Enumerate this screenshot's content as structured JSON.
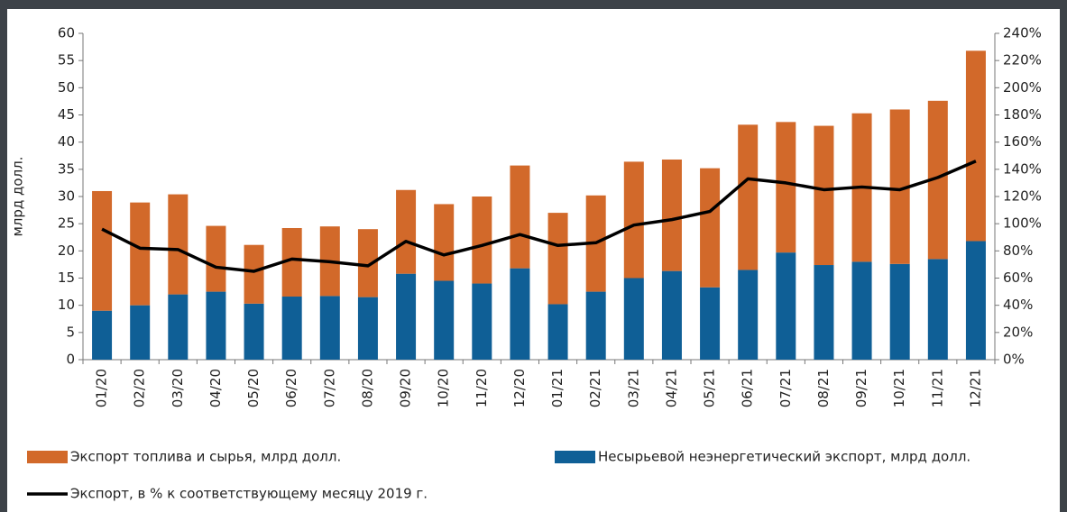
{
  "chart_data": {
    "type": "bar",
    "y_label": "млрд долл.",
    "categories": [
      "01/20",
      "02/20",
      "03/20",
      "04/20",
      "05/20",
      "06/20",
      "07/20",
      "08/20",
      "09/20",
      "10/20",
      "11/20",
      "12/20",
      "01/21",
      "02/21",
      "03/21",
      "04/21",
      "05/21",
      "06/21",
      "07/21",
      "08/21",
      "09/21",
      "10/21",
      "11/21",
      "12/21"
    ],
    "series": [
      {
        "name": "Экспорт топлива и сырья, млрд долл.",
        "color": "#d2692a",
        "values": [
          22,
          18.9,
          18.4,
          12.1,
          10.8,
          12.6,
          12.8,
          12.5,
          15.4,
          14.1,
          16,
          18.9,
          16.8,
          17.7,
          21.4,
          20.5,
          21.9,
          26.7,
          24,
          25.6,
          27.3,
          28.4,
          29.1,
          35
        ]
      },
      {
        "name": "Несырьевой неэнергетический экспорт, млрд долл.",
        "color": "#0f5f96",
        "values": [
          9,
          10,
          12,
          12.5,
          10.3,
          11.6,
          11.7,
          11.5,
          15.8,
          14.5,
          14,
          16.8,
          10.2,
          12.5,
          15,
          16.3,
          13.3,
          16.5,
          19.7,
          17.4,
          18,
          17.6,
          18.5,
          21.8
        ]
      },
      {
        "name": "Экспорт, в % к соответствующему месяцу 2019 г.",
        "color": "#000000",
        "axis": "y2",
        "values": [
          96,
          82,
          81,
          68,
          65,
          74,
          72,
          69,
          87,
          77,
          84,
          92,
          84,
          86,
          99,
          103,
          109,
          133,
          130,
          125,
          127,
          125,
          134,
          146
        ]
      }
    ],
    "ylim": [
      0,
      60
    ],
    "yticks": [
      0,
      5,
      10,
      15,
      20,
      25,
      30,
      35,
      40,
      45,
      50,
      55,
      60
    ],
    "y2lim": [
      0,
      240
    ],
    "y2ticks": [
      {
        "value": 0,
        "label": "0%"
      },
      {
        "value": 20,
        "label": "20%"
      },
      {
        "value": 40,
        "label": "40%"
      },
      {
        "value": 60,
        "label": "60%"
      },
      {
        "value": 80,
        "label": "80%"
      },
      {
        "value": 100,
        "label": "100%"
      },
      {
        "value": 120,
        "label": "120%"
      },
      {
        "value": 140,
        "label": "140%"
      },
      {
        "value": 160,
        "label": "160%"
      },
      {
        "value": 180,
        "label": "180%"
      },
      {
        "value": 200,
        "label": "200%"
      },
      {
        "value": 220,
        "label": "220%"
      },
      {
        "value": 240,
        "label": "240%"
      }
    ],
    "grid": false
  }
}
